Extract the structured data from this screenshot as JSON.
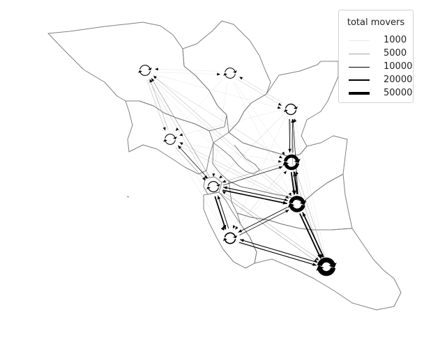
{
  "legend": {
    "title": "total movers",
    "entries": [
      {
        "label": "1000",
        "value": 1000,
        "color": "#e8e8e8"
      },
      {
        "label": "5000",
        "value": 5000,
        "color": "#a8a8a8"
      },
      {
        "label": "10000",
        "value": 10000,
        "color": "#000000"
      },
      {
        "label": "20000",
        "value": 20000,
        "color": "#000000"
      },
      {
        "label": "50000",
        "value": 50000,
        "color": "#000000"
      }
    ]
  },
  "colors": {
    "boundary": "#808080",
    "flow": "#000000",
    "background": "#ffffff"
  },
  "nodes": [
    {
      "id": "sonoma",
      "stay_movers": 8000
    },
    {
      "id": "napa",
      "stay_movers": 3000
    },
    {
      "id": "solano",
      "stay_movers": 10000
    },
    {
      "id": "marin",
      "stay_movers": 5000
    },
    {
      "id": "contra-costa",
      "stay_movers": 35000
    },
    {
      "id": "san-francisco",
      "stay_movers": 9000
    },
    {
      "id": "alameda",
      "stay_movers": 40000
    },
    {
      "id": "san-mateo",
      "stay_movers": 12000
    },
    {
      "id": "santa-clara",
      "stay_movers": 55000
    }
  ],
  "flows": [
    {
      "from": "sonoma",
      "to": "napa",
      "movers": 1200
    },
    {
      "from": "napa",
      "to": "sonoma",
      "movers": 1000
    },
    {
      "from": "sonoma",
      "to": "solano",
      "movers": 1500
    },
    {
      "from": "sonoma",
      "to": "marin",
      "movers": 3000
    },
    {
      "from": "marin",
      "to": "sonoma",
      "movers": 4000
    },
    {
      "from": "sonoma",
      "to": "contra-costa",
      "movers": 2000
    },
    {
      "from": "sonoma",
      "to": "san-francisco",
      "movers": 2500
    },
    {
      "from": "san-francisco",
      "to": "sonoma",
      "movers": 5000
    },
    {
      "from": "sonoma",
      "to": "alameda",
      "movers": 2000
    },
    {
      "from": "alameda",
      "to": "sonoma",
      "movers": 3500
    },
    {
      "from": "sonoma",
      "to": "san-mateo",
      "movers": 1000
    },
    {
      "from": "sonoma",
      "to": "santa-clara",
      "movers": 1000
    },
    {
      "from": "napa",
      "to": "solano",
      "movers": 2500
    },
    {
      "from": "solano",
      "to": "napa",
      "movers": 2000
    },
    {
      "from": "napa",
      "to": "marin",
      "movers": 1000
    },
    {
      "from": "napa",
      "to": "contra-costa",
      "movers": 1500
    },
    {
      "from": "napa",
      "to": "san-francisco",
      "movers": 1200
    },
    {
      "from": "napa",
      "to": "alameda",
      "movers": 1500
    },
    {
      "from": "solano",
      "to": "contra-costa",
      "movers": 8000
    },
    {
      "from": "contra-costa",
      "to": "solano",
      "movers": 7000
    },
    {
      "from": "solano",
      "to": "alameda",
      "movers": 5000
    },
    {
      "from": "alameda",
      "to": "solano",
      "movers": 6000
    },
    {
      "from": "solano",
      "to": "san-francisco",
      "movers": 2000
    },
    {
      "from": "solano",
      "to": "marin",
      "movers": 1500
    },
    {
      "from": "solano",
      "to": "santa-clara",
      "movers": 1500
    },
    {
      "from": "solano",
      "to": "san-mateo",
      "movers": 1000
    },
    {
      "from": "marin",
      "to": "san-francisco",
      "movers": 4500
    },
    {
      "from": "san-francisco",
      "to": "marin",
      "movers": 6000
    },
    {
      "from": "marin",
      "to": "contra-costa",
      "movers": 1500
    },
    {
      "from": "marin",
      "to": "alameda",
      "movers": 2000
    },
    {
      "from": "alameda",
      "to": "marin",
      "movers": 2500
    },
    {
      "from": "marin",
      "to": "san-mateo",
      "movers": 1200
    },
    {
      "from": "san-francisco",
      "to": "alameda",
      "movers": 14000
    },
    {
      "from": "alameda",
      "to": "san-francisco",
      "movers": 9000
    },
    {
      "from": "san-francisco",
      "to": "contra-costa",
      "movers": 6000
    },
    {
      "from": "contra-costa",
      "to": "san-francisco",
      "movers": 4000
    },
    {
      "from": "san-francisco",
      "to": "san-mateo",
      "movers": 15000
    },
    {
      "from": "san-mateo",
      "to": "san-francisco",
      "movers": 8000
    },
    {
      "from": "san-francisco",
      "to": "santa-clara",
      "movers": 5000
    },
    {
      "from": "santa-clara",
      "to": "san-francisco",
      "movers": 4000
    },
    {
      "from": "contra-costa",
      "to": "alameda",
      "movers": 15000
    },
    {
      "from": "alameda",
      "to": "contra-costa",
      "movers": 20000
    },
    {
      "from": "contra-costa",
      "to": "santa-clara",
      "movers": 4000
    },
    {
      "from": "santa-clara",
      "to": "contra-costa",
      "movers": 3500
    },
    {
      "from": "contra-costa",
      "to": "san-mateo",
      "movers": 2000
    },
    {
      "from": "alameda",
      "to": "santa-clara",
      "movers": 16000
    },
    {
      "from": "santa-clara",
      "to": "alameda",
      "movers": 14000
    },
    {
      "from": "alameda",
      "to": "san-mateo",
      "movers": 7000
    },
    {
      "from": "san-mateo",
      "to": "alameda",
      "movers": 6000
    },
    {
      "from": "san-mateo",
      "to": "santa-clara",
      "movers": 10000
    },
    {
      "from": "santa-clara",
      "to": "san-mateo",
      "movers": 9000
    },
    {
      "from": "san-mateo",
      "to": "contra-costa",
      "movers": 1500
    },
    {
      "from": "santa-clara",
      "to": "solano",
      "movers": 1200
    }
  ]
}
